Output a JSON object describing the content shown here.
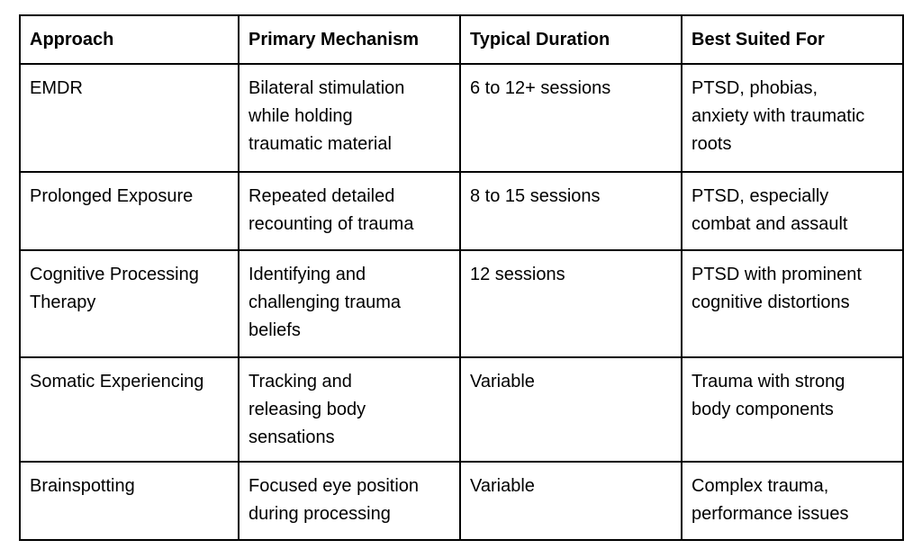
{
  "page": {
    "background_color": "#ffffff",
    "text_color": "#000000",
    "border_color": "#000000"
  },
  "table": {
    "columns": [
      {
        "label": "Approach"
      },
      {
        "label": "Primary Mechanism"
      },
      {
        "label": "Typical Duration"
      },
      {
        "label": "Best Suited For"
      }
    ],
    "rows": [
      {
        "approach": "EMDR",
        "mechanism": "Bilateral stimulation\nwhile holding\ntraumatic material",
        "duration": "6 to 12+ sessions",
        "best_for": "PTSD, phobias,\nanxiety with traumatic\nroots"
      },
      {
        "approach": "Prolonged Exposure",
        "mechanism": "Repeated detailed\nrecounting of trauma",
        "duration": "8 to 15 sessions",
        "best_for": "PTSD, especially\ncombat and assault"
      },
      {
        "approach": "Cognitive Processing\nTherapy",
        "mechanism": "Identifying and\nchallenging trauma\nbeliefs",
        "duration": "12 sessions",
        "best_for": "PTSD with prominent\ncognitive distortions"
      },
      {
        "approach": "Somatic Experiencing",
        "mechanism": "Tracking and\nreleasing body\nsensations",
        "duration": "Variable",
        "best_for": "Trauma with strong\nbody components"
      },
      {
        "approach": "Brainspotting",
        "mechanism": "Focused eye position\nduring processing",
        "duration": "Variable",
        "best_for": "Complex trauma,\nperformance issues"
      }
    ]
  }
}
